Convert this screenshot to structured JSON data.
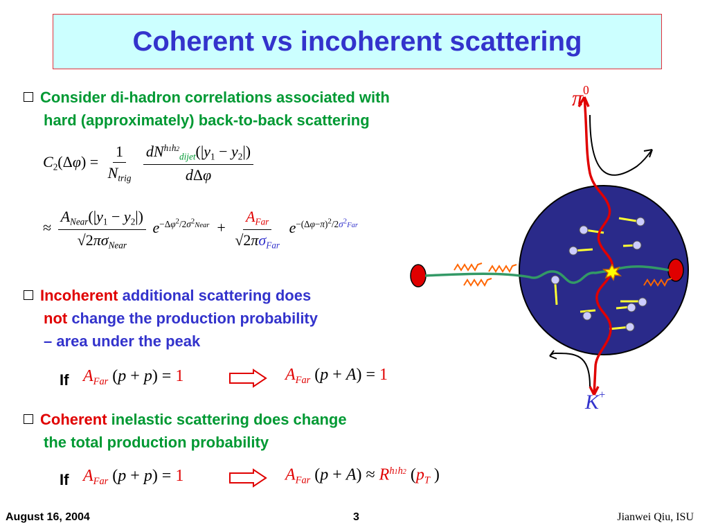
{
  "title": "Coherent vs incoherent scattering",
  "bullet1": {
    "line1": "Consider di-hadron correlations associated with",
    "line2": "hard (approximately) back-to-back scattering"
  },
  "bullet2": {
    "word1": "Incoherent",
    "rest1": " additional scattering does",
    "word2": "not",
    "rest2": " change the production probability",
    "line3": "– area under the peak"
  },
  "bullet3": {
    "word1": "Coherent",
    "rest1": " inelastic scattering does change",
    "line2": "the total production probability"
  },
  "if_label": "If",
  "diagram": {
    "top_particle": "π",
    "top_particle_sup": "0",
    "bottom_particle": "K",
    "bottom_particle_sup": "+"
  },
  "footer": {
    "date": "August 16, 2004",
    "page": "3",
    "author": "Jianwei Qiu, ISU"
  },
  "colors": {
    "title_bg": "#ccffff",
    "title_text": "#3333cc",
    "green_text": "#009933",
    "blue_text": "#3333cc",
    "red_text": "#e00000",
    "nucleus": "#2a2a8a"
  }
}
